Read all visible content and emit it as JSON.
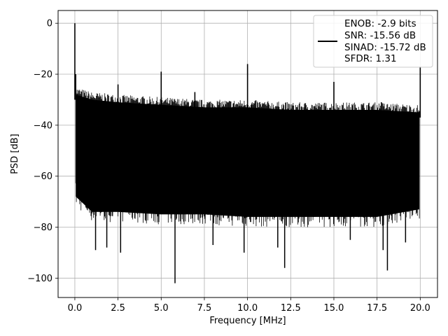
{
  "chart_data": {
    "type": "line",
    "xlabel": "Frequency [MHz]",
    "ylabel": "PSD [dB]",
    "xlim": [
      -0.97,
      21.0
    ],
    "ylim": [
      -107.6,
      5.0
    ],
    "xticks": [
      0.0,
      2.5,
      5.0,
      7.5,
      10.0,
      12.5,
      15.0,
      17.5,
      20.0
    ],
    "xtick_labels": [
      "0.0",
      "2.5",
      "5.0",
      "7.5",
      "10.0",
      "12.5",
      "15.0",
      "17.5",
      "20.0"
    ],
    "yticks": [
      0,
      -20,
      -40,
      -60,
      -80,
      -100
    ],
    "ytick_labels": [
      "0",
      "−20",
      "−40",
      "−60",
      "−80",
      "−100"
    ],
    "grid": true,
    "legend_position": "top-right",
    "series": [
      {
        "color": "#000000",
        "legend_lines": [
          "ENOB: -2.9 bits",
          "SNR: -15.56 dB",
          "SINAD: -15.72 dB",
          "SFDR: 1.31"
        ],
        "noise_band": {
          "x": [
            0.05,
            1.0,
            2.5,
            5.0,
            7.5,
            10.0,
            12.5,
            15.0,
            17.5,
            19.95
          ],
          "upper": [
            -28,
            -30,
            -31,
            -32,
            -33,
            -33,
            -34,
            -34,
            -34,
            -35
          ],
          "lower": [
            -68,
            -74,
            -74,
            -75,
            -75,
            -76,
            -76,
            -76,
            -76,
            -73
          ]
        },
        "spurs": [
          {
            "x": 0.0,
            "y": 0
          },
          {
            "x": 0.05,
            "y": -20
          },
          {
            "x": 2.5,
            "y": -24
          },
          {
            "x": 5.0,
            "y": -19
          },
          {
            "x": 6.95,
            "y": -27
          },
          {
            "x": 10.0,
            "y": -16
          },
          {
            "x": 15.0,
            "y": -23
          },
          {
            "x": 17.75,
            "y": -31
          },
          {
            "x": 20.0,
            "y": -17
          }
        ],
        "dips": [
          {
            "x": 0.15,
            "y": -68
          },
          {
            "x": 1.2,
            "y": -89
          },
          {
            "x": 1.85,
            "y": -88
          },
          {
            "x": 2.65,
            "y": -90
          },
          {
            "x": 5.8,
            "y": -102
          },
          {
            "x": 8.0,
            "y": -87
          },
          {
            "x": 9.8,
            "y": -90
          },
          {
            "x": 11.75,
            "y": -88
          },
          {
            "x": 12.15,
            "y": -96
          },
          {
            "x": 15.95,
            "y": -85
          },
          {
            "x": 17.85,
            "y": -89
          },
          {
            "x": 18.1,
            "y": -97
          },
          {
            "x": 19.15,
            "y": -86
          }
        ]
      }
    ]
  }
}
